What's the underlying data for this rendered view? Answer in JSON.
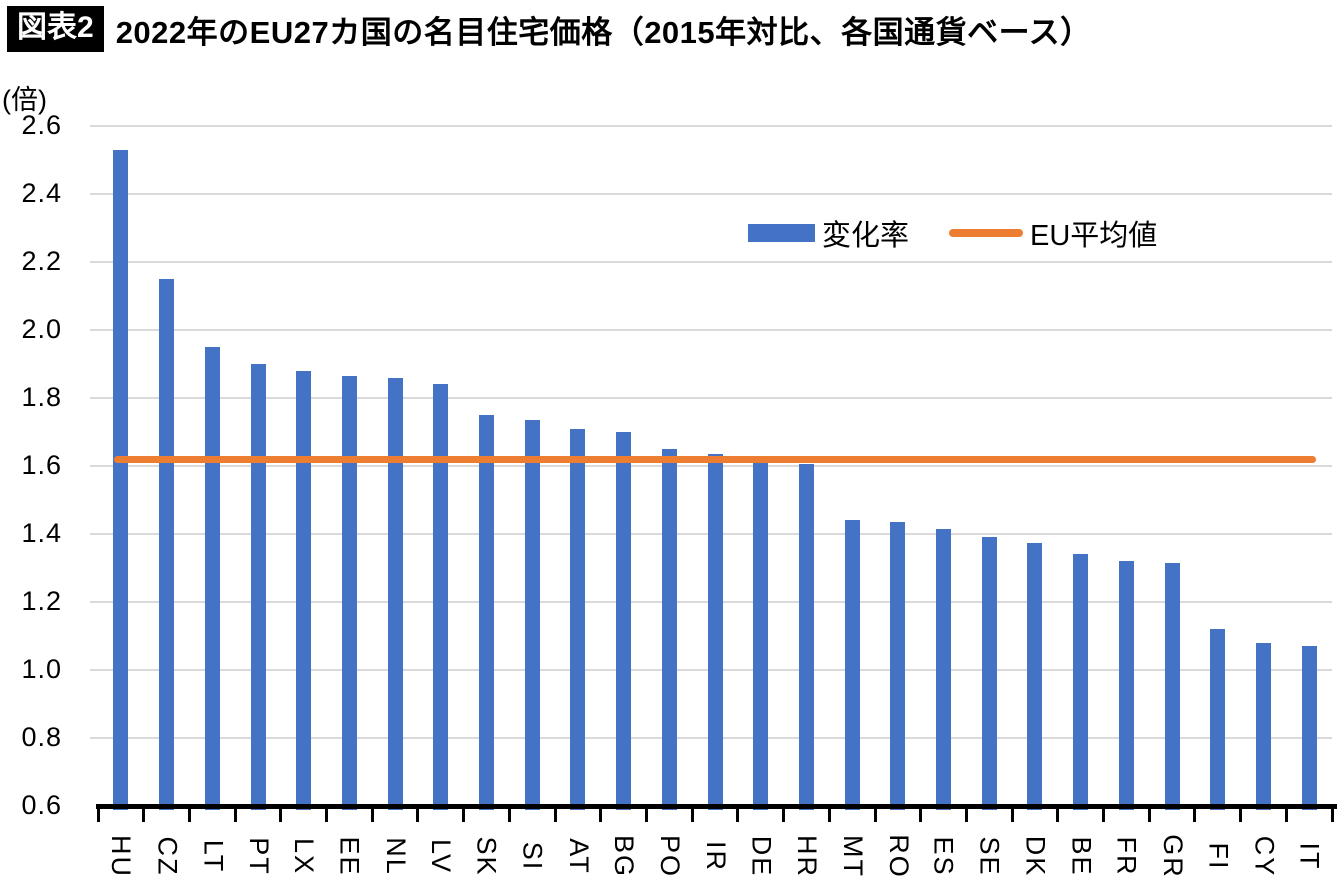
{
  "header": {
    "badge": "図表2",
    "title": "2022年のEU27カ国の名目住宅価格（2015年対比、各国通貨ベース）"
  },
  "chart_data": {
    "type": "bar",
    "title": "2022年のEU27カ国の名目住宅価格（2015年対比、各国通貨ベース）",
    "unit_label": "(倍)",
    "categories": [
      "HU",
      "CZ",
      "LT",
      "PT",
      "LX",
      "EE",
      "NL",
      "LV",
      "SK",
      "SI",
      "AT",
      "BG",
      "PO",
      "IR",
      "DE",
      "HR",
      "MT",
      "RO",
      "ES",
      "SE",
      "DK",
      "BE",
      "FR",
      "GR",
      "FI",
      "CY",
      "IT"
    ],
    "series": [
      {
        "name": "変化率",
        "type": "bar",
        "color": "#4472C4",
        "values": [
          2.53,
          2.15,
          1.95,
          1.9,
          1.88,
          1.865,
          1.86,
          1.84,
          1.75,
          1.735,
          1.71,
          1.7,
          1.65,
          1.635,
          1.61,
          1.605,
          1.44,
          1.435,
          1.415,
          1.39,
          1.375,
          1.34,
          1.32,
          1.315,
          1.12,
          1.08,
          1.07
        ]
      },
      {
        "name": "EU平均値",
        "type": "line",
        "color": "#ED7D31",
        "value": 1.62
      }
    ],
    "ylim": [
      0.6,
      2.6
    ],
    "ytick_step": 0.2,
    "ytick_labels": [
      "2.6",
      "2.4",
      "2.2",
      "2.0",
      "1.8",
      "1.6",
      "1.4",
      "1.2",
      "1.0",
      "0.8",
      "0.6"
    ],
    "grid": true,
    "grid_color": "#D9D9D9",
    "axis_color": "#000000",
    "legend_position": "top-right"
  }
}
